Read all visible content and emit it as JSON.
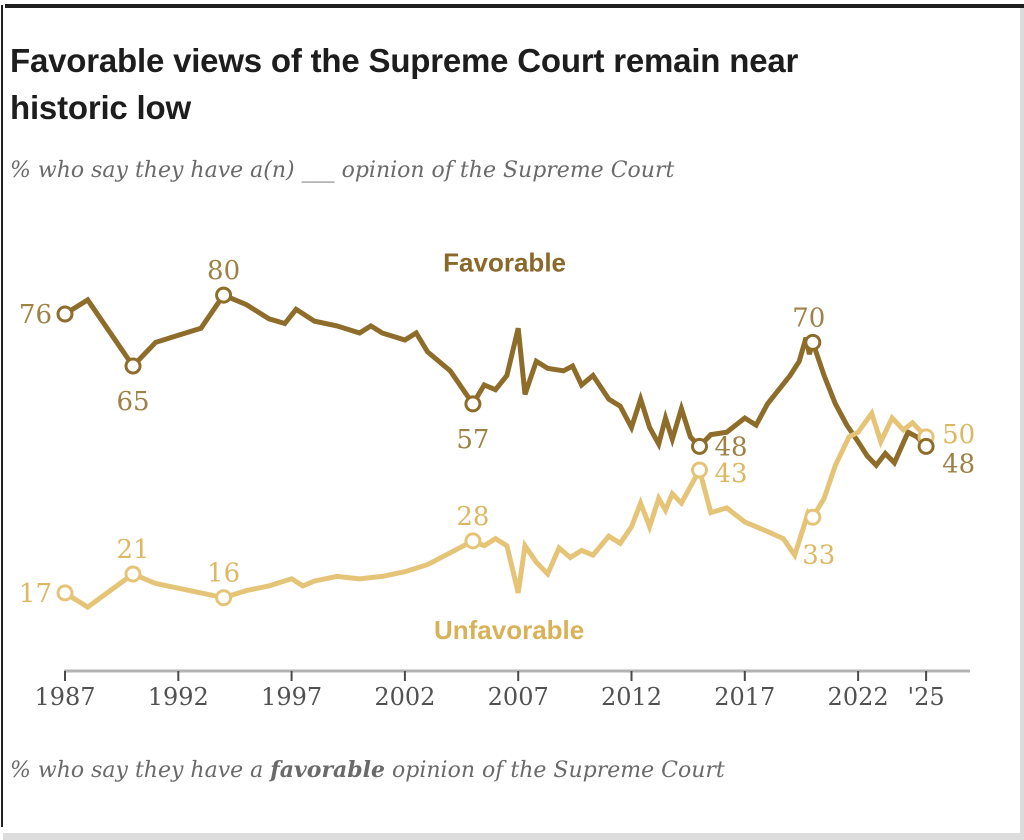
{
  "header": {
    "title_line1": "Favorable views of the Supreme Court remain near",
    "title_line2": "historic low",
    "subtitle": "% who say they have a(n) ___ opinion of the Supreme Court"
  },
  "caption": {
    "prefix": "% who say they have a ",
    "bold": "favorable",
    "suffix": " opinion of the Supreme Court"
  },
  "frame_colors": {
    "dark_edge": "#1f1f1f",
    "light_edge": "#dcdcdc"
  },
  "chart_data": {
    "type": "line",
    "title": "Favorable views of the Supreme Court remain near historic low",
    "subtitle": "% who say they have a(n) ___ opinion of the Supreme Court",
    "xlabel": "",
    "ylabel": "",
    "xlim": [
      1986,
      2027
    ],
    "ylim": [
      0,
      100
    ],
    "grid": false,
    "legend": "inline-annotations",
    "x_axis": {
      "line_color": "#b3b3b3",
      "tick_color": "#4a4a4a",
      "label_color": "#515151",
      "ticks": [
        {
          "year": 1987,
          "label": "1987"
        },
        {
          "year": 1992,
          "label": "1992"
        },
        {
          "year": 1997,
          "label": "1997"
        },
        {
          "year": 2002,
          "label": "2002"
        },
        {
          "year": 2007,
          "label": "2007"
        },
        {
          "year": 2012,
          "label": "2012"
        },
        {
          "year": 2017,
          "label": "2017"
        },
        {
          "year": 2022,
          "label": "2022"
        },
        {
          "year": 2025,
          "label": "'25"
        }
      ]
    },
    "marker_fill": "#ffffff",
    "series": [
      {
        "id": "favorable",
        "name": "Favorable",
        "color": "#8e6c2a",
        "label_color": "#9d8145",
        "annotation_color": "#8a682a",
        "annotation": {
          "year": 2006.4,
          "value": 85
        },
        "points": [
          [
            1987,
            76
          ],
          [
            1988,
            79
          ],
          [
            1990,
            65
          ],
          [
            1991,
            70
          ],
          [
            1992,
            71.5
          ],
          [
            1993,
            73
          ],
          [
            1994,
            80
          ],
          [
            1995,
            78
          ],
          [
            1996,
            75
          ],
          [
            1996.7,
            74
          ],
          [
            1997.2,
            77
          ],
          [
            1998,
            74.5
          ],
          [
            1999,
            73.5
          ],
          [
            2000,
            72
          ],
          [
            2000.5,
            73.5
          ],
          [
            2001,
            72
          ],
          [
            2002,
            70.5
          ],
          [
            2002.5,
            72
          ],
          [
            2003,
            68
          ],
          [
            2004,
            64
          ],
          [
            2005,
            57
          ],
          [
            2005.5,
            61
          ],
          [
            2006,
            60
          ],
          [
            2006.5,
            63
          ],
          [
            2007,
            73
          ],
          [
            2007.3,
            59
          ],
          [
            2007.8,
            66
          ],
          [
            2008.3,
            64.5
          ],
          [
            2009,
            64
          ],
          [
            2009.4,
            65
          ],
          [
            2009.8,
            61
          ],
          [
            2010.3,
            63
          ],
          [
            2011,
            58
          ],
          [
            2011.5,
            56.5
          ],
          [
            2012,
            52
          ],
          [
            2012.4,
            58
          ],
          [
            2012.8,
            52
          ],
          [
            2013.2,
            48.5
          ],
          [
            2013.5,
            54
          ],
          [
            2013.8,
            49.5
          ],
          [
            2014.2,
            56
          ],
          [
            2014.6,
            50
          ],
          [
            2015,
            48
          ],
          [
            2015.5,
            50.5
          ],
          [
            2016.2,
            51
          ],
          [
            2017,
            54
          ],
          [
            2017.5,
            52.5
          ],
          [
            2018,
            57
          ],
          [
            2018.5,
            60
          ],
          [
            2019,
            63
          ],
          [
            2019.4,
            66
          ],
          [
            2019.7,
            71
          ],
          [
            2019.85,
            67.5
          ],
          [
            2020,
            70
          ],
          [
            2020.5,
            63
          ],
          [
            2021,
            57
          ],
          [
            2021.5,
            52.5
          ],
          [
            2022,
            49
          ],
          [
            2022.4,
            46
          ],
          [
            2022.8,
            44
          ],
          [
            2023.2,
            46.5
          ],
          [
            2023.6,
            44.5
          ],
          [
            2024.2,
            51
          ],
          [
            2024.6,
            50
          ],
          [
            2025,
            48
          ]
        ],
        "labeled_points": [
          {
            "year": 1987,
            "value": 76,
            "label": "76",
            "anchor": "end",
            "dx": -13,
            "dy": 9
          },
          {
            "year": 1990,
            "value": 65,
            "label": "65",
            "anchor": "middle",
            "dx": 0,
            "dy": 44
          },
          {
            "year": 1994,
            "value": 80,
            "label": "80",
            "anchor": "middle",
            "dx": 0,
            "dy": -16
          },
          {
            "year": 2005,
            "value": 57,
            "label": "57",
            "anchor": "middle",
            "dx": 0,
            "dy": 44
          },
          {
            "year": 2015,
            "value": 48,
            "label": "48",
            "anchor": "start",
            "dx": 15,
            "dy": 9
          },
          {
            "year": 2020,
            "value": 70,
            "label": "70",
            "anchor": "middle",
            "dx": -4,
            "dy": -16
          },
          {
            "year": 2025,
            "value": 48,
            "label": "48",
            "anchor": "start",
            "dx": 16,
            "dy": 26
          }
        ]
      },
      {
        "id": "unfavorable",
        "name": "Unfavorable",
        "color": "#e5c478",
        "label_color": "#ddb863",
        "annotation_color": "#d9b159",
        "annotation": {
          "year": 2006.6,
          "value": 7.3
        },
        "points": [
          [
            1987,
            17
          ],
          [
            1988,
            14
          ],
          [
            1990,
            21
          ],
          [
            1991,
            19
          ],
          [
            1992,
            18
          ],
          [
            1993,
            17
          ],
          [
            1994,
            16
          ],
          [
            1995,
            17.5
          ],
          [
            1996,
            18.5
          ],
          [
            1997,
            20
          ],
          [
            1997.5,
            18.5
          ],
          [
            1998,
            19.5
          ],
          [
            1999,
            20.5
          ],
          [
            2000,
            20
          ],
          [
            2001,
            20.5
          ],
          [
            2002,
            21.5
          ],
          [
            2003,
            23
          ],
          [
            2004,
            25.5
          ],
          [
            2005,
            28
          ],
          [
            2005.5,
            27
          ],
          [
            2006,
            28.5
          ],
          [
            2006.5,
            27
          ],
          [
            2007,
            17
          ],
          [
            2007.3,
            27
          ],
          [
            2007.8,
            23.5
          ],
          [
            2008.3,
            21
          ],
          [
            2008.8,
            26.5
          ],
          [
            2009.3,
            24.5
          ],
          [
            2009.8,
            26
          ],
          [
            2010.3,
            25
          ],
          [
            2011,
            29
          ],
          [
            2011.5,
            27.5
          ],
          [
            2012,
            31
          ],
          [
            2012.4,
            36
          ],
          [
            2012.8,
            31
          ],
          [
            2013.2,
            37
          ],
          [
            2013.5,
            34.5
          ],
          [
            2013.8,
            38
          ],
          [
            2014.2,
            36
          ],
          [
            2014.6,
            39.5
          ],
          [
            2015,
            43
          ],
          [
            2015.5,
            34
          ],
          [
            2016.2,
            35
          ],
          [
            2017,
            32
          ],
          [
            2018,
            30
          ],
          [
            2018.7,
            28.5
          ],
          [
            2019.2,
            25
          ],
          [
            2019.8,
            34
          ],
          [
            2020,
            33
          ],
          [
            2020.5,
            37
          ],
          [
            2021,
            44
          ],
          [
            2021.6,
            50
          ],
          [
            2022,
            51
          ],
          [
            2022.6,
            55
          ],
          [
            2023,
            49
          ],
          [
            2023.5,
            54
          ],
          [
            2024,
            51.5
          ],
          [
            2024.4,
            53
          ],
          [
            2025,
            50
          ]
        ],
        "labeled_points": [
          {
            "year": 1987,
            "value": 17,
            "label": "17",
            "anchor": "end",
            "dx": -13,
            "dy": 9
          },
          {
            "year": 1990,
            "value": 21,
            "label": "21",
            "anchor": "middle",
            "dx": 0,
            "dy": -16
          },
          {
            "year": 1994,
            "value": 16,
            "label": "16",
            "anchor": "middle",
            "dx": 0,
            "dy": -16
          },
          {
            "year": 2005,
            "value": 28,
            "label": "28",
            "anchor": "middle",
            "dx": 0,
            "dy": -16
          },
          {
            "year": 2015,
            "value": 43,
            "label": "43",
            "anchor": "start",
            "dx": 15,
            "dy": 12
          },
          {
            "year": 2020,
            "value": 33,
            "label": "33",
            "anchor": "middle",
            "dx": 6,
            "dy": 46
          },
          {
            "year": 2025,
            "value": 50,
            "label": "50",
            "anchor": "start",
            "dx": 16,
            "dy": 6
          }
        ]
      }
    ]
  }
}
